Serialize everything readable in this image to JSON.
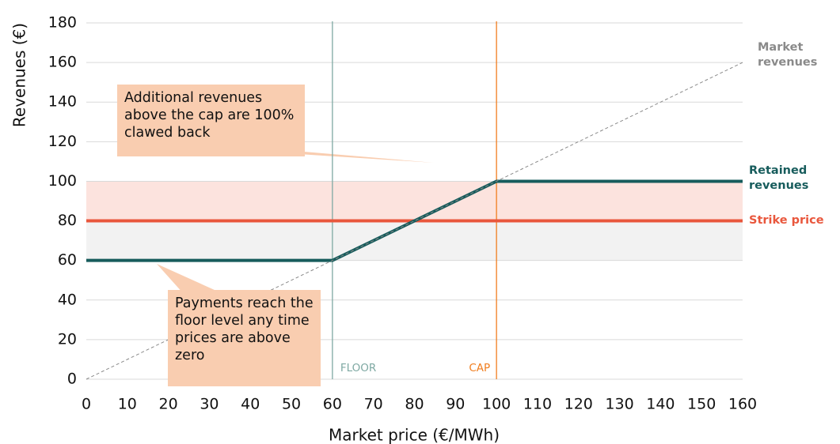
{
  "chart_data": {
    "type": "line",
    "x_label": "Market price (€/MWh)",
    "y_label": "Revenues (€)",
    "xlim": [
      0,
      160
    ],
    "ylim": [
      0,
      180
    ],
    "xticks": [
      0,
      10,
      20,
      30,
      40,
      50,
      60,
      70,
      80,
      90,
      100,
      110,
      120,
      130,
      140,
      150,
      160
    ],
    "yticks": [
      0,
      20,
      40,
      60,
      80,
      100,
      120,
      140,
      160,
      180
    ],
    "grid": true,
    "bands": [
      {
        "from": 60,
        "to": 80,
        "color": "#f2f2f2"
      },
      {
        "from": 80,
        "to": 100,
        "color": "#fce3de"
      }
    ],
    "vlines": [
      {
        "x": 60,
        "label": "FLOOR",
        "color": "#7fa9a3"
      },
      {
        "x": 100,
        "label": "CAP",
        "color": "#f07d1e"
      }
    ],
    "series": [
      {
        "name": "Market revenues",
        "color": "#8a8a8a",
        "dashed": true,
        "x": [
          0,
          160
        ],
        "values": [
          0,
          160
        ]
      },
      {
        "name": "Retained revenues",
        "color": "#175c5c",
        "x": [
          0,
          60,
          100,
          160
        ],
        "values": [
          60,
          60,
          100,
          100
        ]
      },
      {
        "name": "Strike price",
        "color": "#e9573d",
        "x": [
          0,
          160
        ],
        "values": [
          80,
          80
        ]
      }
    ],
    "annotations": [
      "Additional revenues above the cap are 100% clawed back",
      "Payments reach the floor level any time prices are above zero"
    ]
  }
}
